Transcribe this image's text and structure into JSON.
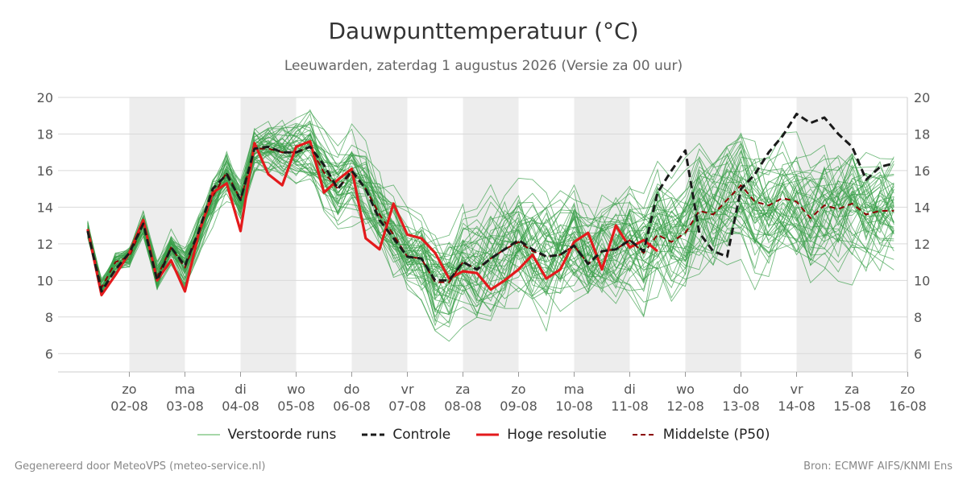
{
  "title": "Dauwpunttemperatuur (°C)",
  "subtitle": "Leeuwarden, zaterdag  1 augustus 2026 (Versie za 00 uur)",
  "footer": {
    "left": "Gegenereerd door MeteoVPS (meteo-service.nl)",
    "right": "Bron: ECMWF AIFS/KNMI Ens"
  },
  "legend": [
    {
      "label": "Verstoorde runs",
      "color": "#4caf50",
      "style": "thin"
    },
    {
      "label": "Controle",
      "color": "#1a1a1a",
      "style": "dashed"
    },
    {
      "label": "Hoge resolutie",
      "color": "#e31a1c",
      "style": "solid"
    },
    {
      "label": "Middelste (P50)",
      "color": "#8b0000",
      "style": "dashed"
    }
  ],
  "chart_data": {
    "type": "line",
    "ylabel": "",
    "xlabel": "",
    "ylim": [
      5,
      20
    ],
    "yticks": [
      6,
      8,
      10,
      12,
      14,
      16,
      18,
      20
    ],
    "grid": "horizontal",
    "legend_position": "bottom",
    "time_axis": {
      "start": "2026-08-01 06:00",
      "end": "2026-08-16 00:00",
      "step_hours": 6
    },
    "x_ticks": [
      {
        "day": "zo",
        "date": "02-08"
      },
      {
        "day": "ma",
        "date": "03-08"
      },
      {
        "day": "di",
        "date": "04-08"
      },
      {
        "day": "wo",
        "date": "05-08"
      },
      {
        "day": "do",
        "date": "06-08"
      },
      {
        "day": "vr",
        "date": "07-08"
      },
      {
        "day": "za",
        "date": "08-08"
      },
      {
        "day": "zo",
        "date": "09-08"
      },
      {
        "day": "ma",
        "date": "10-08"
      },
      {
        "day": "di",
        "date": "11-08"
      },
      {
        "day": "wo",
        "date": "12-08"
      },
      {
        "day": "do",
        "date": "13-08"
      },
      {
        "day": "vr",
        "date": "14-08"
      },
      {
        "day": "za",
        "date": "15-08"
      },
      {
        "day": "zo",
        "date": "16-08"
      }
    ],
    "shaded_days": [
      "02-08",
      "04-08",
      "06-08",
      "08-08",
      "10-08",
      "12-08",
      "14-08"
    ],
    "ensemble_members": 50,
    "series": [
      {
        "name": "Controle",
        "color": "#1a1a1a",
        "values": [
          12.7,
          9.4,
          10.6,
          11.5,
          13.1,
          10.0,
          11.8,
          10.8,
          12.7,
          15.0,
          15.8,
          14.4,
          17.2,
          17.3,
          17.0,
          17.0,
          17.3,
          16.3,
          15.0,
          16.0,
          15.0,
          13.3,
          12.3,
          11.3,
          11.2,
          10.0,
          10.0,
          11.0,
          10.6,
          11.2,
          11.7,
          12.2,
          11.7,
          11.3,
          11.4,
          11.9,
          10.9,
          11.6,
          11.7,
          12.2,
          11.6,
          14.8,
          16.0,
          17.1,
          12.6,
          11.6,
          11.3,
          15.0,
          15.8,
          17.0,
          17.9,
          19.1,
          18.6,
          18.9,
          18.0,
          17.3,
          15.5,
          16.2,
          16.4
        ]
      },
      {
        "name": "Hoge resolutie",
        "color": "#e31a1c",
        "values": [
          12.8,
          9.2,
          10.3,
          11.5,
          13.3,
          10.0,
          11.1,
          9.4,
          12.6,
          14.8,
          15.3,
          12.7,
          17.5,
          15.8,
          15.2,
          17.3,
          17.6,
          14.8,
          15.5,
          16.1,
          12.3,
          11.7,
          14.2,
          12.5,
          12.3,
          11.5,
          10.1,
          10.5,
          10.4,
          9.5,
          10.0,
          10.6,
          11.4,
          10.1,
          10.6,
          12.1,
          12.6,
          10.6,
          13.0,
          11.8,
          12.2,
          11.6
        ]
      },
      {
        "name": "Middelste (P50)",
        "color": "#8b0000",
        "values": [
          12.8,
          9.6,
          11.0,
          11.3,
          13.1,
          10.2,
          11.8,
          10.7,
          12.6,
          14.6,
          15.9,
          14.4,
          17.2,
          17.2,
          17.0,
          17.0,
          17.3,
          15.9,
          15.0,
          15.9,
          15.0,
          13.6,
          12.5,
          11.3,
          11.2,
          9.9,
          9.9,
          11.0,
          10.6,
          11.2,
          11.7,
          12.1,
          11.6,
          11.3,
          11.4,
          11.9,
          10.9,
          11.6,
          11.7,
          12.2,
          11.5,
          12.5,
          12.1,
          12.6,
          13.8,
          13.6,
          14.4,
          15.2,
          14.3,
          14.1,
          14.5,
          14.3,
          13.4,
          14.1,
          13.9,
          14.2,
          13.6,
          13.8,
          13.8
        ]
      }
    ]
  }
}
